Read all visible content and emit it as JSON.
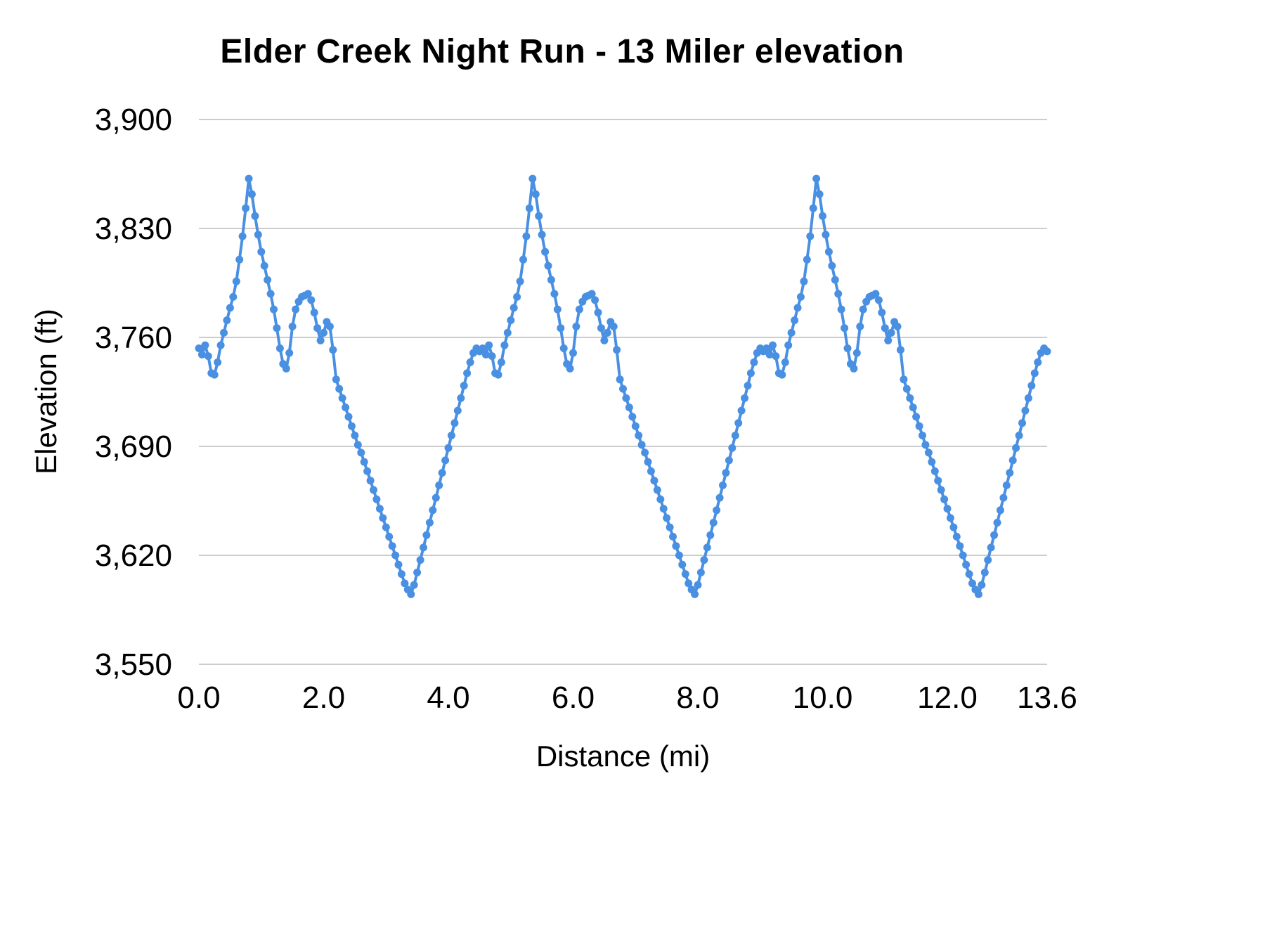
{
  "chart_data": {
    "type": "line",
    "title": "Elder Creek Night Run - 13 Miler elevation",
    "xlabel": "Distance (mi)",
    "ylabel": "Elevation (ft)",
    "xlim": [
      0,
      13.6
    ],
    "ylim": [
      3550,
      3900
    ],
    "x_ticks": [
      0.0,
      2.0,
      4.0,
      6.0,
      8.0,
      10.0,
      12.0,
      13.6
    ],
    "x_tick_labels": [
      "0.0",
      "2.0",
      "4.0",
      "6.0",
      "8.0",
      "10.0",
      "12.0",
      "13.6"
    ],
    "y_ticks": [
      3550,
      3620,
      3690,
      3760,
      3830,
      3900
    ],
    "y_tick_labels": [
      "3,550",
      "3,620",
      "3,690",
      "3,760",
      "3,830",
      "3,900"
    ],
    "grid": "horizontal",
    "legend": "none",
    "line_color": "#4a90e2",
    "grid_color": "#cccccc",
    "text_color": "#000000",
    "marker": "circle",
    "x_start": 0,
    "x_step": 0.05,
    "y": [
      3753,
      3749,
      3755,
      3748,
      3737,
      3736,
      3744,
      3755,
      3763,
      3771,
      3779,
      3786,
      3796,
      3810,
      3825,
      3843,
      3862,
      3852,
      3838,
      3826,
      3815,
      3806,
      3797,
      3788,
      3778,
      3766,
      3753,
      3743,
      3740,
      3750,
      3767,
      3778,
      3783,
      3786,
      3787,
      3788,
      3784,
      3776,
      3766,
      3758,
      3763,
      3770,
      3767,
      3752,
      3733,
      3727,
      3721,
      3715,
      3709,
      3703,
      3697,
      3691,
      3686,
      3680,
      3674,
      3668,
      3662,
      3656,
      3650,
      3644,
      3638,
      3632,
      3626,
      3620,
      3614,
      3608,
      3602,
      3598,
      3595,
      3601,
      3609,
      3617,
      3625,
      3633,
      3641,
      3649,
      3657,
      3665,
      3673,
      3681,
      3689,
      3697,
      3705,
      3713,
      3721,
      3729,
      3737,
      3744,
      3750,
      3753,
      3751,
      3753,
      3749,
      3755,
      3748,
      3737,
      3736,
      3744,
      3755,
      3763,
      3771,
      3779,
      3786,
      3796,
      3810,
      3825,
      3843,
      3862,
      3852,
      3838,
      3826,
      3815,
      3806,
      3797,
      3788,
      3778,
      3766,
      3753,
      3743,
      3740,
      3750,
      3767,
      3778,
      3783,
      3786,
      3787,
      3788,
      3784,
      3776,
      3766,
      3758,
      3763,
      3770,
      3767,
      3752,
      3733,
      3727,
      3721,
      3715,
      3709,
      3703,
      3697,
      3691,
      3686,
      3680,
      3674,
      3668,
      3662,
      3656,
      3650,
      3644,
      3638,
      3632,
      3626,
      3620,
      3614,
      3608,
      3602,
      3598,
      3595,
      3601,
      3609,
      3617,
      3625,
      3633,
      3641,
      3649,
      3657,
      3665,
      3673,
      3681,
      3689,
      3697,
      3705,
      3713,
      3721,
      3729,
      3737,
      3744,
      3750,
      3753,
      3751,
      3753,
      3749,
      3755,
      3748,
      3737,
      3736,
      3744,
      3755,
      3763,
      3771,
      3779,
      3786,
      3796,
      3810,
      3825,
      3843,
      3862,
      3852,
      3838,
      3826,
      3815,
      3806,
      3797,
      3788,
      3778,
      3766,
      3753,
      3743,
      3740,
      3750,
      3767,
      3778,
      3783,
      3786,
      3787,
      3788,
      3784,
      3776,
      3766,
      3758,
      3763,
      3770,
      3767,
      3752,
      3733,
      3727,
      3721,
      3715,
      3709,
      3703,
      3697,
      3691,
      3686,
      3680,
      3674,
      3668,
      3662,
      3656,
      3650,
      3644,
      3638,
      3632,
      3626,
      3620,
      3614,
      3608,
      3602,
      3598,
      3595,
      3601,
      3609,
      3617,
      3625,
      3633,
      3641,
      3649,
      3657,
      3665,
      3673,
      3681,
      3689,
      3697,
      3705,
      3713,
      3721,
      3729,
      3737,
      3744,
      3750,
      3753,
      3751
    ]
  }
}
